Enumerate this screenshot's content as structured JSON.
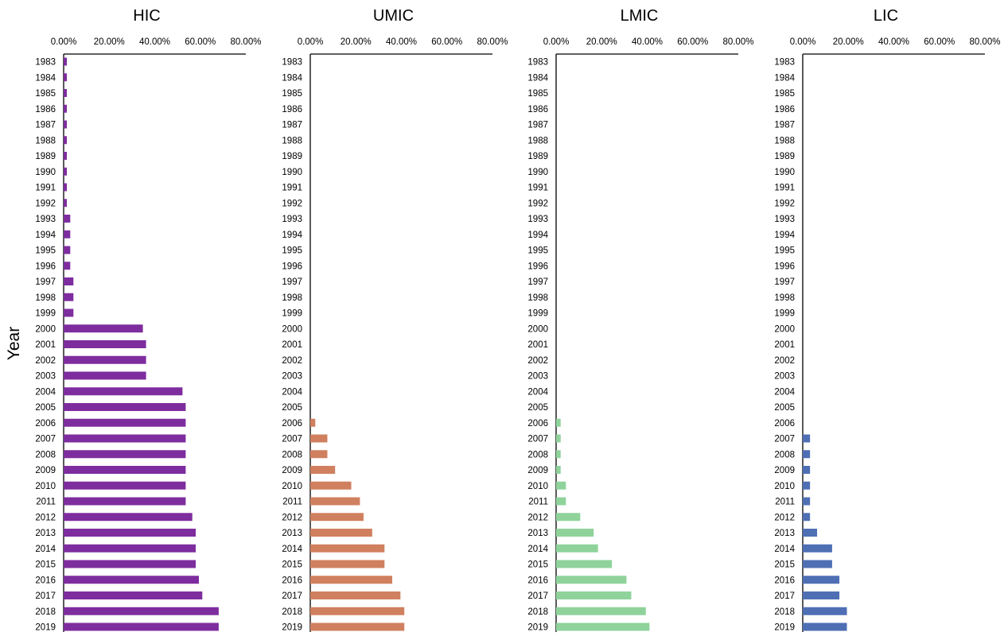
{
  "y_axis_label": "Year",
  "chart_data": [
    {
      "type": "bar",
      "orientation": "horizontal",
      "title": "HIC",
      "color": "#7e2d9e",
      "xlim": [
        0,
        80
      ],
      "x_ticks": [
        "0.00%",
        "20.00%",
        "40.00%",
        "60.00%",
        "80.00%"
      ],
      "categories": [
        "1983",
        "1984",
        "1985",
        "1986",
        "1987",
        "1988",
        "1989",
        "1990",
        "1991",
        "1992",
        "1993",
        "1994",
        "1995",
        "1996",
        "1997",
        "1998",
        "1999",
        "2000",
        "2001",
        "2002",
        "2003",
        "2004",
        "2005",
        "2006",
        "2007",
        "2008",
        "2009",
        "2010",
        "2011",
        "2012",
        "2013",
        "2014",
        "2015",
        "2016",
        "2017",
        "2018",
        "2019"
      ],
      "values": [
        1.4,
        1.4,
        1.4,
        1.4,
        1.4,
        1.4,
        1.4,
        1.4,
        1.4,
        1.4,
        2.9,
        2.9,
        2.9,
        2.9,
        4.3,
        4.3,
        4.3,
        34.8,
        36.2,
        36.2,
        36.2,
        52.2,
        53.6,
        53.6,
        53.6,
        53.6,
        53.6,
        53.6,
        53.6,
        56.5,
        58.0,
        58.0,
        58.0,
        59.4,
        60.9,
        68.1,
        68.1
      ]
    },
    {
      "type": "bar",
      "orientation": "horizontal",
      "title": "UMIC",
      "color": "#d0805f",
      "xlim": [
        0,
        80
      ],
      "x_ticks": [
        "0.00%",
        "20.00%",
        "40.00%",
        "60.00%",
        "80.00%"
      ],
      "categories": [
        "1983",
        "1984",
        "1985",
        "1986",
        "1987",
        "1988",
        "1989",
        "1990",
        "1991",
        "1992",
        "1993",
        "1994",
        "1995",
        "1996",
        "1997",
        "1998",
        "1999",
        "2000",
        "2001",
        "2002",
        "2003",
        "2004",
        "2005",
        "2006",
        "2007",
        "2008",
        "2009",
        "2010",
        "2011",
        "2012",
        "2013",
        "2014",
        "2015",
        "2016",
        "2017",
        "2018",
        "2019"
      ],
      "values": [
        0,
        0,
        0,
        0,
        0,
        0,
        0,
        0,
        0,
        0,
        0,
        0,
        0,
        0,
        0,
        0,
        0,
        0,
        0,
        0,
        0,
        0,
        0,
        2.2,
        7.5,
        7.5,
        10.9,
        18.0,
        21.8,
        23.4,
        27.2,
        32.6,
        32.6,
        36.0,
        39.6,
        41.3,
        41.3
      ]
    },
    {
      "type": "bar",
      "orientation": "horizontal",
      "title": "LMIC",
      "color": "#8fd39b",
      "xlim": [
        0,
        80
      ],
      "x_ticks": [
        "0.00%",
        "20.00%",
        "40.00%",
        "60.00%",
        "80.00%"
      ],
      "categories": [
        "1983",
        "1984",
        "1985",
        "1986",
        "1987",
        "1988",
        "1989",
        "1990",
        "1991",
        "1992",
        "1993",
        "1994",
        "1995",
        "1996",
        "1997",
        "1998",
        "1999",
        "2000",
        "2001",
        "2002",
        "2003",
        "2004",
        "2005",
        "2006",
        "2007",
        "2008",
        "2009",
        "2010",
        "2011",
        "2012",
        "2013",
        "2014",
        "2015",
        "2016",
        "2017",
        "2018",
        "2019"
      ],
      "values": [
        0,
        0,
        0,
        0,
        0,
        0,
        0,
        0,
        0,
        0,
        0,
        0,
        0,
        0,
        0,
        0,
        0,
        0,
        0,
        0,
        0,
        0,
        0,
        2.0,
        2.0,
        2.0,
        2.0,
        4.3,
        4.3,
        10.6,
        16.5,
        18.4,
        24.5,
        30.9,
        33.0,
        39.4,
        41.0
      ]
    },
    {
      "type": "bar",
      "orientation": "horizontal",
      "title": "LIC",
      "color": "#4f6fb4",
      "xlim": [
        0,
        80
      ],
      "x_ticks": [
        "0.00%",
        "20.00%",
        "40.00%",
        "60.00%",
        "80.00%"
      ],
      "categories": [
        "1983",
        "1984",
        "1985",
        "1986",
        "1987",
        "1988",
        "1989",
        "1990",
        "1991",
        "1992",
        "1993",
        "1994",
        "1995",
        "1996",
        "1997",
        "1998",
        "1999",
        "2000",
        "2001",
        "2002",
        "2003",
        "2004",
        "2005",
        "2006",
        "2007",
        "2008",
        "2009",
        "2010",
        "2011",
        "2012",
        "2013",
        "2014",
        "2015",
        "2016",
        "2017",
        "2018",
        "2019"
      ],
      "values": [
        0,
        0,
        0,
        0,
        0,
        0,
        0,
        0,
        0,
        0,
        0,
        0,
        0,
        0,
        0,
        0,
        0,
        0,
        0,
        0,
        0,
        0,
        0,
        0,
        3.2,
        3.2,
        3.2,
        3.2,
        3.2,
        3.2,
        6.3,
        12.9,
        12.9,
        16.1,
        16.1,
        19.4,
        19.4
      ]
    }
  ]
}
